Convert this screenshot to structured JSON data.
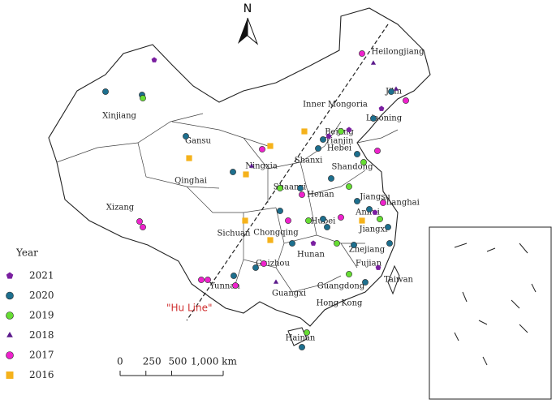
{
  "north_label": "N",
  "annotation": "\"Hu Line\"",
  "legend": {
    "title": "Year",
    "items": [
      {
        "year": 2021,
        "color": "#7a1fa0",
        "shape": "pentagon"
      },
      {
        "year": 2020,
        "color": "#1d6f8e",
        "shape": "circle"
      },
      {
        "year": 2019,
        "color": "#66dd33",
        "shape": "circle"
      },
      {
        "year": 2018,
        "color": "#5b1a8c",
        "shape": "triangle"
      },
      {
        "year": 2017,
        "color": "#ee22cc",
        "shape": "circle"
      },
      {
        "year": 2016,
        "color": "#f5b21b",
        "shape": "square"
      }
    ]
  },
  "scale_bar": {
    "ticks": [
      {
        "value": 0,
        "label": "0"
      },
      {
        "value": 250,
        "label": "250"
      },
      {
        "value": 500,
        "label": "500"
      },
      {
        "value": 1000,
        "label": "1,000 km"
      }
    ]
  },
  "regions": [
    "Heilongjiang",
    "Jilin",
    "Inner Mongoria",
    "Liaoning",
    "Xinjiang",
    "Gansu",
    "Ningxia",
    "Qinghai",
    "Shanxi",
    "Hebei",
    "Shandong",
    "Beijing",
    "Tianjin",
    "Shaanxi",
    "Henan",
    "Jiangsu",
    "Shanghai",
    "Anhui",
    "Hubei",
    "Zhejiang",
    "Xizang",
    "Sichuan",
    "Chongqing",
    "Hunan",
    "Jiangxi",
    "Fujian",
    "Taiwan",
    "Guizhou",
    "Yunnan",
    "Guangxi",
    "Guangdong",
    "Hong Kong",
    "Hainan"
  ]
}
